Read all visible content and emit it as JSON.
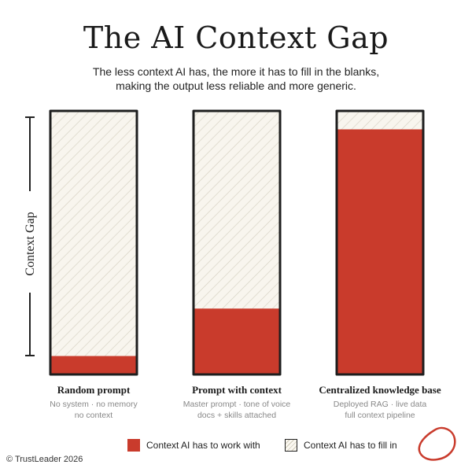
{
  "header": {
    "title": "The AI Context Gap",
    "subtitle_line1": "The less context AI has, the more it has to fill in the blanks,",
    "subtitle_line2": "making the output less reliable and more generic."
  },
  "chart_data": {
    "type": "bar",
    "orientation": "vertical",
    "stacked": true,
    "axis_label": "Context Gap",
    "categories": [
      "Random prompt",
      "Prompt with context",
      "Centralized knowledge base"
    ],
    "descriptions": [
      [
        "No system · no memory",
        "no context"
      ],
      [
        "Master prompt · tone of voice",
        "docs + skills attached"
      ],
      [
        "Deployed RAG · live data",
        "full context pipeline"
      ]
    ],
    "series": [
      {
        "name": "Context AI has to work with",
        "values": [
          7,
          25,
          93
        ],
        "color": "#c93b2c"
      },
      {
        "name": "Context AI has to fill in",
        "values": [
          93,
          75,
          7
        ],
        "color": "#f8f5ee"
      }
    ],
    "ylim": [
      0,
      100
    ],
    "grid": false,
    "legend_position": "bottom"
  },
  "legend": {
    "work_with": "Context AI has to work with",
    "fill_in": "Context AI has to fill in"
  },
  "footer": {
    "copyright": "© TrustLeader 2026"
  }
}
